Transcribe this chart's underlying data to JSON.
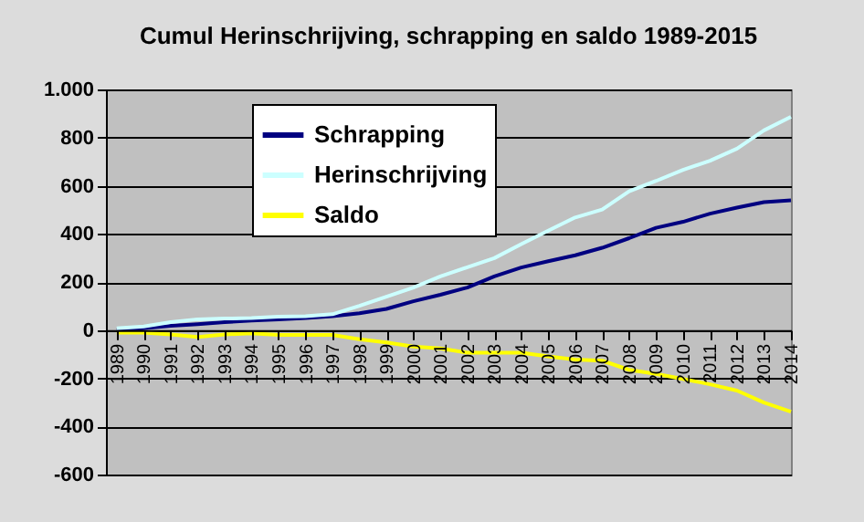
{
  "chart_data": {
    "type": "line",
    "title": "Cumul Herinschrijving, schrapping en saldo 1989-2015",
    "categories": [
      "1989",
      "1990",
      "1991",
      "1992",
      "1993",
      "1994",
      "1995",
      "1996",
      "1997",
      "1998",
      "1999",
      "2000",
      "2001",
      "2002",
      "2003",
      "2004",
      "2005",
      "2006",
      "2007",
      "2008",
      "2009",
      "2010",
      "2011",
      "2012",
      "2013",
      "2014"
    ],
    "series": [
      {
        "name": "Schrapping",
        "color": "#000080",
        "values": [
          0,
          8,
          18,
          25,
          33,
          40,
          45,
          50,
          58,
          70,
          88,
          120,
          147,
          177,
          223,
          260,
          286,
          311,
          342,
          382,
          425,
          450,
          484,
          509,
          532,
          539
        ]
      },
      {
        "name": "Herinschrijving",
        "color": "#ccffff",
        "values": [
          8,
          15,
          33,
          45,
          48,
          50,
          56,
          58,
          66,
          101,
          139,
          177,
          223,
          261,
          299,
          357,
          413,
          468,
          501,
          577,
          620,
          666,
          704,
          754,
          830,
          886
        ]
      },
      {
        "name": "Saldo",
        "color": "#ffff00",
        "values": [
          -10,
          -10,
          -18,
          -28,
          -18,
          -13,
          -20,
          -20,
          -20,
          -38,
          -51,
          -68,
          -76,
          -94,
          -94,
          -94,
          -109,
          -122,
          -127,
          -165,
          -182,
          -203,
          -225,
          -251,
          -301,
          -339
        ]
      }
    ],
    "ylim": [
      -600,
      1000
    ],
    "yticks": [
      -600,
      -400,
      -200,
      0,
      200,
      400,
      600,
      800,
      {
        "value": 1000,
        "label": "1.000"
      }
    ],
    "grid": "y",
    "legend": "top left",
    "line_style": "solid",
    "marker": "none"
  }
}
